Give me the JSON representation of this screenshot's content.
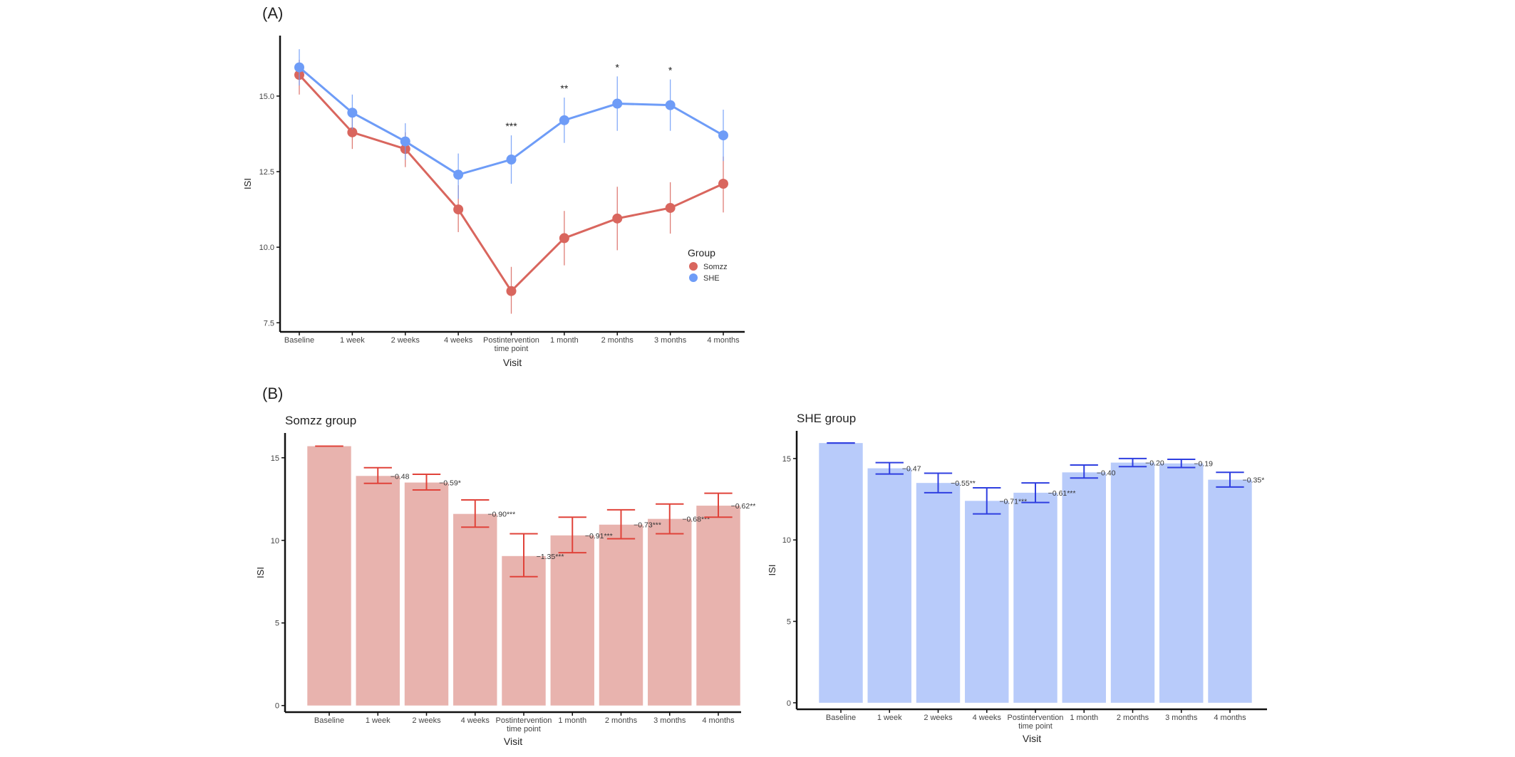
{
  "panel_a": {
    "label": "(A)",
    "chart_data": {
      "type": "line",
      "categories": [
        "Baseline",
        "1 week",
        "2 weeks",
        "4 weeks",
        "Postintervention\ntime point",
        "1 month",
        "2 months",
        "3 months",
        "4 months"
      ],
      "xlabel": "Visit",
      "ylabel": "ISI",
      "ylim": [
        7.2,
        17.0
      ],
      "yticks": [
        "7.5",
        "10.0",
        "12.5",
        "15.0"
      ],
      "legend": {
        "title": "Group",
        "position": "right",
        "entries": [
          "Somzz",
          "SHE"
        ]
      },
      "colors": {
        "Somzz": "#d9665e",
        "SHE": "#6e9cf7"
      },
      "grid": false,
      "series": [
        {
          "name": "Somzz",
          "values": [
            15.7,
            13.8,
            13.25,
            11.25,
            8.55,
            10.3,
            10.95,
            11.3,
            12.1
          ],
          "err_low": [
            15.05,
            13.25,
            12.65,
            10.5,
            7.8,
            9.4,
            9.9,
            10.45,
            11.15
          ],
          "err_high": [
            16.2,
            14.35,
            13.8,
            12.05,
            9.35,
            11.2,
            12.0,
            12.15,
            13.0
          ]
        },
        {
          "name": "SHE",
          "values": [
            15.95,
            14.45,
            13.5,
            12.4,
            12.9,
            14.2,
            14.75,
            14.7,
            13.7
          ],
          "err_low": [
            15.35,
            13.9,
            12.9,
            11.6,
            12.1,
            13.45,
            13.85,
            13.85,
            12.85
          ],
          "err_high": [
            16.55,
            15.05,
            14.1,
            13.1,
            13.7,
            14.95,
            15.65,
            15.55,
            14.55
          ]
        }
      ],
      "annotations": [
        {
          "category_index": 4,
          "text": "***"
        },
        {
          "category_index": 5,
          "text": "**"
        },
        {
          "category_index": 6,
          "text": "*"
        },
        {
          "category_index": 7,
          "text": "*"
        }
      ]
    }
  },
  "panel_b": {
    "label": "(B)",
    "chart_data": [
      {
        "type": "bar",
        "title": "Somzz group",
        "xlabel": "Visit",
        "ylabel": "ISI",
        "ylim": [
          -0.4,
          16.5
        ],
        "yticks": [
          "0",
          "5",
          "10",
          "15"
        ],
        "color": "#e8b3ae",
        "err_color": "#e0433a",
        "categories": [
          "Baseline",
          "1 week",
          "2 weeks",
          "4 weeks",
          "Postintervention\ntime point",
          "1 month",
          "2 months",
          "3 months",
          "4 months"
        ],
        "values": [
          15.7,
          13.9,
          13.5,
          11.6,
          9.05,
          10.3,
          10.95,
          11.3,
          12.1
        ],
        "err_low": [
          15.7,
          13.45,
          13.05,
          10.8,
          7.8,
          9.25,
          10.1,
          10.4,
          11.4
        ],
        "err_high": [
          15.7,
          14.4,
          14.0,
          12.45,
          10.4,
          11.4,
          11.85,
          12.2,
          12.85
        ],
        "labels": [
          "",
          "−0.48",
          "−0.59*",
          "−0.90***",
          "−1.35***",
          "−0.91***",
          "−0.73***",
          "−0.68***",
          "−0.62**"
        ]
      },
      {
        "type": "bar",
        "title": "SHE group",
        "xlabel": "Visit",
        "ylabel": "ISI",
        "ylim": [
          -0.4,
          16.7
        ],
        "yticks": [
          "0",
          "5",
          "10",
          "15"
        ],
        "color": "#b8cbfa",
        "err_color": "#2f3fe0",
        "categories": [
          "Baseline",
          "1 week",
          "2 weeks",
          "4 weeks",
          "Postintervention\ntime point",
          "1 month",
          "2 months",
          "3 months",
          "4 months"
        ],
        "values": [
          15.95,
          14.4,
          13.5,
          12.4,
          12.9,
          14.15,
          14.75,
          14.7,
          13.7
        ],
        "err_low": [
          15.95,
          14.05,
          12.9,
          11.6,
          12.3,
          13.8,
          14.5,
          14.45,
          13.25
        ],
        "err_high": [
          15.95,
          14.75,
          14.1,
          13.2,
          13.5,
          14.6,
          15.0,
          14.95,
          14.15
        ],
        "labels": [
          "",
          "−0.47",
          "−0.55**",
          "−0.71***",
          "−0.61***",
          "−0.40",
          "−0.20",
          "−0.19",
          "−0.35*"
        ]
      }
    ]
  }
}
